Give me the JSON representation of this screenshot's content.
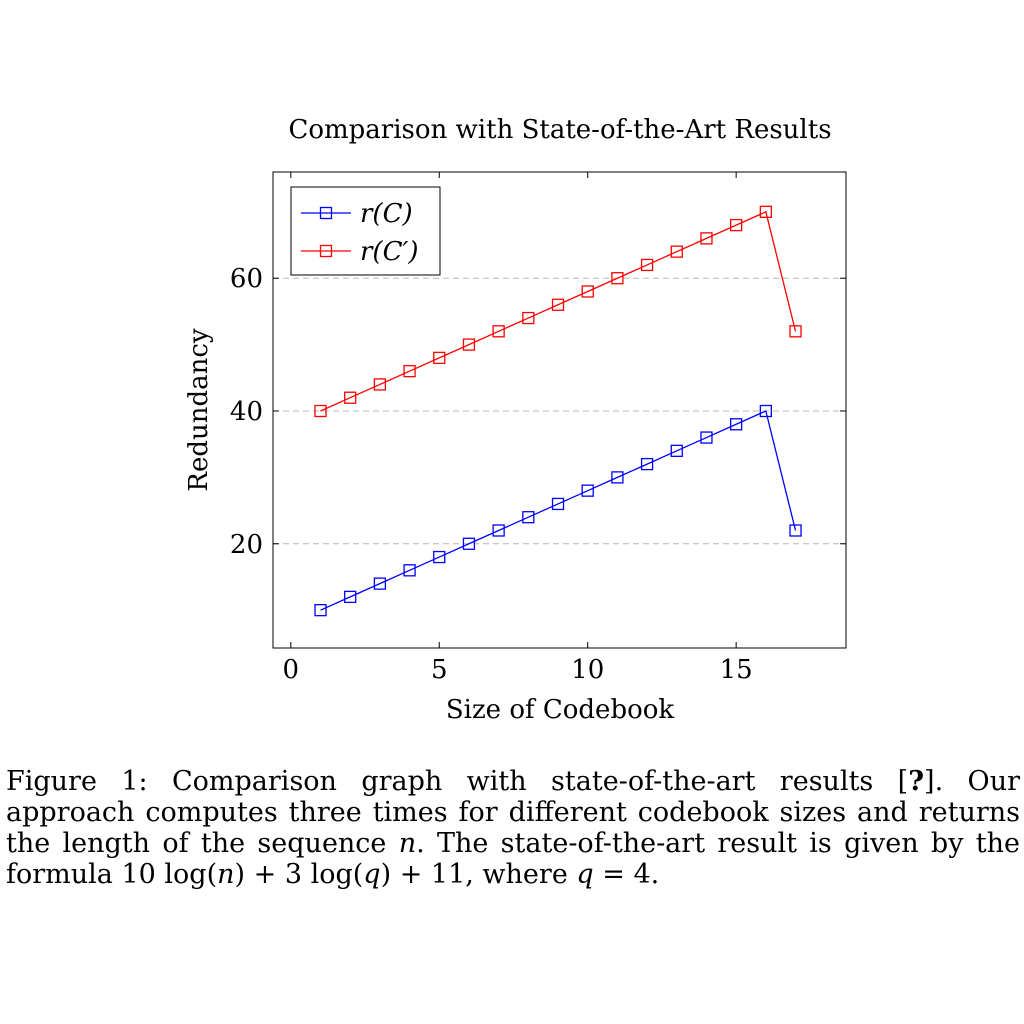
{
  "chart_data": {
    "type": "line",
    "title": "Comparison with State-of-the-Art Results",
    "xlabel": "Size of Codebook",
    "ylabel": "Redundancy",
    "xlim": [
      -0.6,
      18.7
    ],
    "ylim": [
      4.3,
      76
    ],
    "xticks": [
      0,
      5,
      10,
      15
    ],
    "yticks": [
      20,
      40,
      60
    ],
    "grid": "horizontal dashed",
    "legend_position": "top-left",
    "marker": "open square",
    "x": [
      1,
      2,
      3,
      4,
      5,
      6,
      7,
      8,
      9,
      10,
      11,
      12,
      13,
      14,
      15,
      16,
      17
    ],
    "series": [
      {
        "name": "r(C)",
        "color": "#0000ff",
        "values": [
          10,
          12,
          14,
          16,
          18,
          20,
          22,
          24,
          26,
          28,
          30,
          32,
          34,
          36,
          38,
          40,
          22
        ]
      },
      {
        "name": "r(C′)",
        "color": "#ff0000",
        "values": [
          40,
          42,
          44,
          46,
          48,
          50,
          52,
          54,
          56,
          58,
          60,
          62,
          64,
          66,
          68,
          70,
          52
        ]
      }
    ]
  },
  "caption": {
    "label": "Figure 1:",
    "text_1": "Comparison graph with state-of-the-art results [",
    "ref": "?",
    "text_2": "]. Our approach computes three times for different codebook sizes and returns the length of the sequence ",
    "var_n": "n",
    "text_3": ". The state-of-the-art result is given by the formula 10 log(",
    "var_n2": "n",
    "text_4": ") + 3 log(",
    "var_q": "q",
    "text_5": ") + 11, where ",
    "var_q2": "q",
    "text_6": " = 4."
  }
}
